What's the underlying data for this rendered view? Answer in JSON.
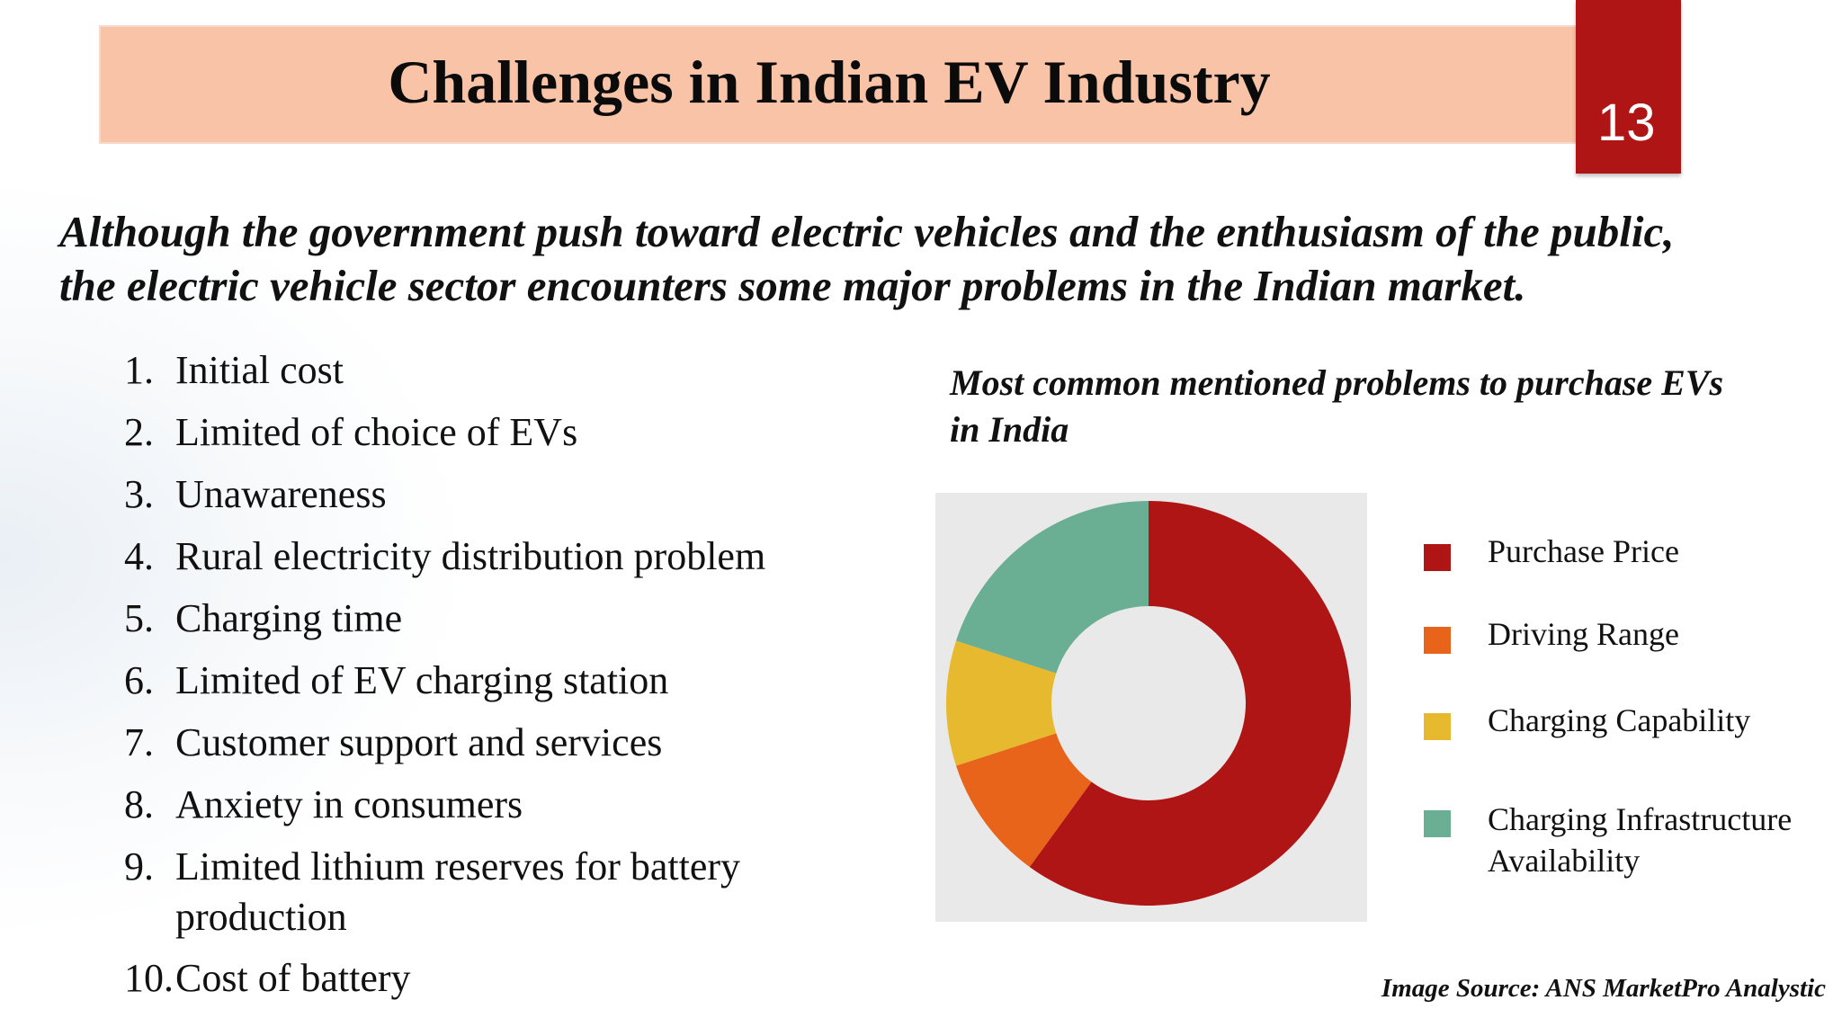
{
  "header": {
    "title": "Challenges in Indian EV Industry",
    "page_number": "13"
  },
  "intro": {
    "line1": "Although the government push toward electric vehicles and the enthusiasm of the public,",
    "line2": "the electric vehicle sector encounters some major problems in the Indian market."
  },
  "challenges": [
    {
      "num": "1.",
      "lines": [
        "Initial cost"
      ]
    },
    {
      "num": "2.",
      "lines": [
        "Limited of choice of EVs"
      ]
    },
    {
      "num": "3.",
      "lines": [
        "Unawareness"
      ]
    },
    {
      "num": "4.",
      "lines": [
        "Rural electricity distribution problem"
      ]
    },
    {
      "num": "5.",
      "lines": [
        "Charging time"
      ]
    },
    {
      "num": "6.",
      "lines": [
        "Limited of EV charging station"
      ]
    },
    {
      "num": "7.",
      "lines": [
        "Customer support and services"
      ]
    },
    {
      "num": "8.",
      "lines": [
        "Anxiety in consumers"
      ]
    },
    {
      "num": "9.",
      "lines": [
        "Limited lithium reserves for battery",
        "production"
      ]
    },
    {
      "num": "10.",
      "lines": [
        "Cost of battery"
      ]
    }
  ],
  "chart_data": {
    "type": "pie",
    "title_lines": [
      "Most common mentioned problems to purchase EVs",
      "in India"
    ],
    "legend_position": "right",
    "hole_ratio": 0.48,
    "series": [
      {
        "name": "Purchase Price",
        "value": 60,
        "color": "#b01516"
      },
      {
        "name": "Driving Range",
        "value": 10,
        "color": "#e8641a"
      },
      {
        "name": "Charging Capability",
        "value": 10,
        "color": "#e7b92e"
      },
      {
        "name": "Charging Infrastructure Availability",
        "value": 20,
        "color": "#6aae93"
      }
    ]
  },
  "source": "Image Source: ANS MarketPro Analystic"
}
